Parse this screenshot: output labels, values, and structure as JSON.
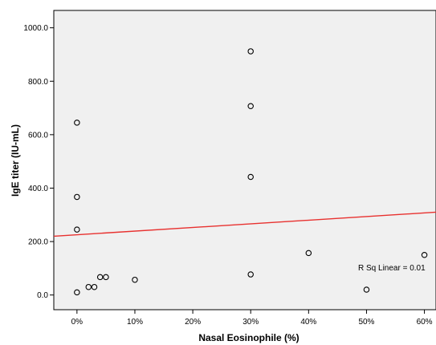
{
  "chart_data": {
    "type": "scatter",
    "xlabel": "Nasal Eosinophile (%)",
    "ylabel": "IgE titer (IU-mL)",
    "xlim": [
      -4,
      62
    ],
    "ylim": [
      -55,
      1065
    ],
    "x_ticks": [
      0,
      10,
      20,
      30,
      40,
      50,
      60
    ],
    "x_tick_labels": [
      "0%",
      "10%",
      "20%",
      "30%",
      "40%",
      "50%",
      "60%"
    ],
    "y_ticks": [
      0,
      200,
      400,
      600,
      800,
      1000
    ],
    "y_tick_labels": [
      "0.0",
      "200.0",
      "400.0",
      "600.0",
      "800.0",
      "1000.0"
    ],
    "grid": false,
    "plot_background": "#f0f0f0",
    "series": [
      {
        "marker": "open-circle",
        "color": "#000000",
        "points": [
          {
            "x": 0,
            "y": 10
          },
          {
            "x": 0,
            "y": 245
          },
          {
            "x": 0,
            "y": 367
          },
          {
            "x": 0,
            "y": 645
          },
          {
            "x": 2,
            "y": 30
          },
          {
            "x": 3,
            "y": 30
          },
          {
            "x": 4,
            "y": 67
          },
          {
            "x": 5,
            "y": 67
          },
          {
            "x": 10,
            "y": 57
          },
          {
            "x": 30,
            "y": 77
          },
          {
            "x": 30,
            "y": 442
          },
          {
            "x": 30,
            "y": 707
          },
          {
            "x": 30,
            "y": 912
          },
          {
            "x": 40,
            "y": 157
          },
          {
            "x": 50,
            "y": 20
          },
          {
            "x": 60,
            "y": 150
          }
        ]
      }
    ],
    "fit_line": {
      "color": "#e8312f",
      "x": [
        -4,
        62
      ],
      "y": [
        220,
        310
      ]
    },
    "annotation": "R Sq Linear = 0.01"
  }
}
